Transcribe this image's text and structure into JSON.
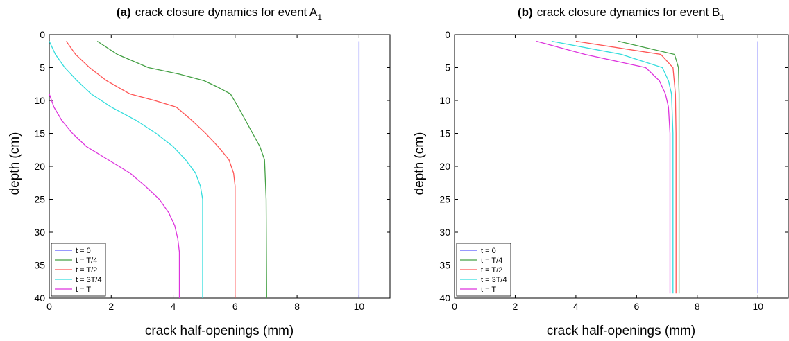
{
  "chart_data": [
    {
      "type": "line",
      "title_prefix": "(a)",
      "title": "crack closure dynamics for event A",
      "title_subscript": "1",
      "xlabel": "crack half-openings (mm)",
      "ylabel": "depth (cm)",
      "xlim": [
        0,
        11
      ],
      "ylim": [
        0,
        40
      ],
      "y_reversed": true,
      "xticks": [
        0,
        2,
        4,
        6,
        8,
        10
      ],
      "yticks": [
        0,
        5,
        10,
        15,
        20,
        25,
        30,
        35,
        40
      ],
      "grid": false,
      "legend_position": "bottom-left",
      "series": [
        {
          "name": "t = 0",
          "color": "#5b5bff",
          "x": [
            10,
            10
          ],
          "y": [
            1,
            40
          ]
        },
        {
          "name": "t = T/4",
          "color": "#44a044",
          "x": [
            1.55,
            2.2,
            3.2,
            4.2,
            5.0,
            5.45,
            5.85,
            6.1,
            6.45,
            6.8,
            6.95,
            7.0,
            7.02
          ],
          "y": [
            1,
            3,
            5,
            6,
            7,
            8,
            9,
            11,
            14,
            17,
            19,
            25,
            40
          ]
        },
        {
          "name": "t = T/2",
          "color": "#ff5555",
          "x": [
            0.55,
            0.85,
            1.3,
            1.85,
            2.6,
            3.4,
            4.1,
            4.6,
            5.05,
            5.45,
            5.8,
            5.95,
            6.0,
            6.0
          ],
          "y": [
            1,
            3,
            5,
            7,
            9,
            10,
            11,
            13,
            15,
            17,
            19,
            21,
            23,
            40
          ]
        },
        {
          "name": "t = 3T/4",
          "color": "#33dddd",
          "x": [
            0.0,
            0.2,
            0.5,
            0.9,
            1.35,
            2.0,
            2.8,
            3.45,
            4.0,
            4.4,
            4.72,
            4.88,
            4.95,
            4.95
          ],
          "y": [
            1,
            3,
            5,
            7,
            9,
            11,
            13,
            15,
            17,
            19,
            21,
            23,
            25,
            40
          ]
        },
        {
          "name": "t = T",
          "color": "#dd33dd",
          "x": [
            0.0,
            0.15,
            0.4,
            0.75,
            1.2,
            1.9,
            2.6,
            3.1,
            3.55,
            3.85,
            4.05,
            4.15,
            4.2,
            4.2
          ],
          "y": [
            9,
            11,
            13,
            15,
            17,
            19,
            21,
            23,
            25,
            27,
            29,
            31,
            33,
            40
          ]
        }
      ]
    },
    {
      "type": "line",
      "title_prefix": "(b)",
      "title": "crack closure dynamics for event B",
      "title_subscript": "1",
      "xlabel": "crack half-openings (mm)",
      "ylabel": "depth (cm)",
      "xlim": [
        0,
        11
      ],
      "ylim": [
        0,
        40
      ],
      "y_reversed": true,
      "xticks": [
        0,
        2,
        4,
        6,
        8,
        10
      ],
      "yticks": [
        0,
        5,
        10,
        15,
        20,
        25,
        30,
        35,
        40
      ],
      "grid": false,
      "legend_position": "bottom-left",
      "series": [
        {
          "name": "t = 0",
          "color": "#5b5bff",
          "x": [
            10,
            10
          ],
          "y": [
            1,
            39.3
          ]
        },
        {
          "name": "t = T/4",
          "color": "#44a044",
          "x": [
            5.4,
            7.25,
            7.38,
            7.4,
            7.4,
            7.4
          ],
          "y": [
            1,
            3,
            5,
            9,
            15,
            39.3
          ]
        },
        {
          "name": "t = T/2",
          "color": "#ff5555",
          "x": [
            4.0,
            6.8,
            7.2,
            7.28,
            7.3,
            7.3
          ],
          "y": [
            1,
            3,
            5,
            9,
            15,
            39.3
          ]
        },
        {
          "name": "t = 3T/4",
          "color": "#33dddd",
          "x": [
            3.2,
            5.5,
            6.85,
            7.05,
            7.15,
            7.2,
            7.2
          ],
          "y": [
            1,
            3,
            5,
            7,
            9,
            15,
            39.3
          ]
        },
        {
          "name": "t = T",
          "color": "#dd33dd",
          "x": [
            2.7,
            4.3,
            6.3,
            6.75,
            6.95,
            7.05,
            7.1,
            7.1
          ],
          "y": [
            1,
            3,
            5,
            7,
            9,
            11,
            15,
            39.3
          ]
        }
      ]
    }
  ]
}
